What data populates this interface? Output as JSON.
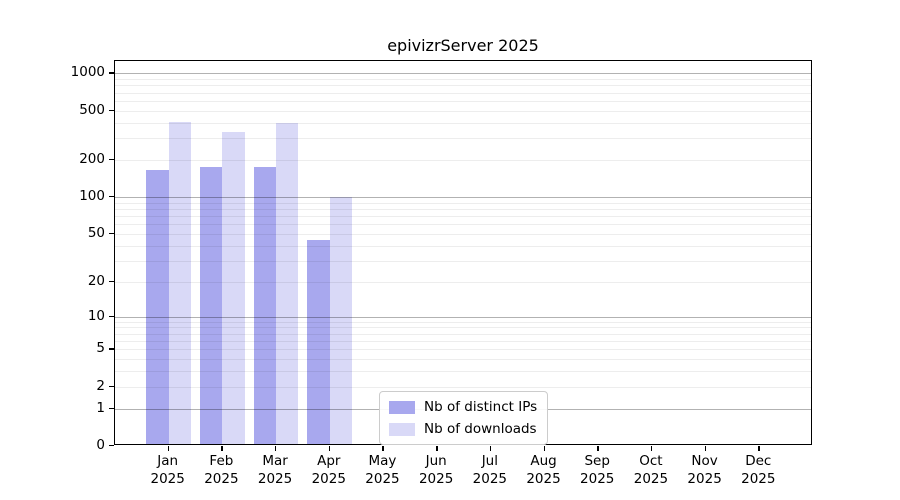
{
  "chart_data": {
    "type": "bar",
    "title": "epivizrServer 2025",
    "categories": [
      "Jan",
      "Feb",
      "Mar",
      "Apr",
      "May",
      "Jun",
      "Jul",
      "Aug",
      "Sep",
      "Oct",
      "Nov",
      "Dec"
    ],
    "category_year": "2025",
    "series": [
      {
        "name": "Nb of distinct IPs",
        "color": "#a8a8ee",
        "values": [
          160,
          168,
          168,
          43,
          0,
          0,
          0,
          0,
          0,
          0,
          0,
          0
        ]
      },
      {
        "name": "Nb of downloads",
        "color": "#d9d9f7",
        "values": [
          390,
          325,
          380,
          97,
          0,
          0,
          0,
          0,
          0,
          0,
          0,
          0
        ]
      }
    ],
    "yscale": "log1p",
    "yticks": [
      0,
      1,
      2,
      5,
      10,
      20,
      50,
      100,
      200,
      500,
      1000
    ],
    "ytick_major": [
      1,
      10,
      100,
      1000
    ],
    "ylim": [
      0,
      1258
    ],
    "grid": true,
    "legend_position": "lower-center",
    "colors": {
      "major_grid": "#b3b3b3",
      "minor_grid": "#ededed",
      "axis": "#000000",
      "background": "#ffffff"
    }
  }
}
